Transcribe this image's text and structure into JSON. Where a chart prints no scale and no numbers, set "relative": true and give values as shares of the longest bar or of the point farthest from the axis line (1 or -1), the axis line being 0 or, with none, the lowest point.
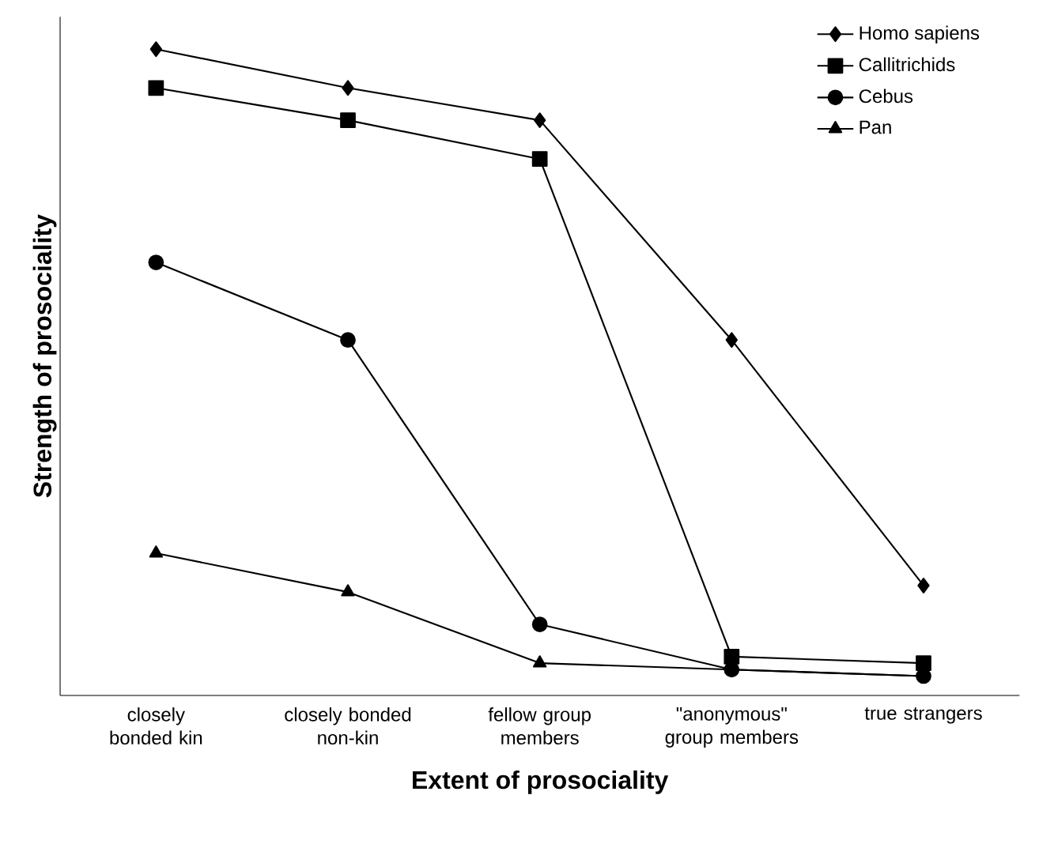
{
  "chart_data": {
    "type": "line",
    "relative": true,
    "xlabel": "Extent of prosociality",
    "ylabel": "Strength of prosociality",
    "categories": [
      "closely bonded kin",
      "closely bonded non-kin",
      "fellow group members",
      "\"anonymous\" group members",
      "true strangers"
    ],
    "series": [
      {
        "name": "Homo sapiens",
        "color": "#000000",
        "marker": "diamond",
        "values": [
          1.0,
          0.94,
          0.89,
          0.55,
          0.17
        ]
      },
      {
        "name": "Callitrichids",
        "color": "#000000",
        "marker": "square",
        "values": [
          0.94,
          0.89,
          0.83,
          0.06,
          0.05
        ]
      },
      {
        "name": "Cebus",
        "color": "#000000",
        "marker": "circle",
        "values": [
          0.67,
          0.55,
          0.11,
          0.04,
          0.03
        ]
      },
      {
        "name": "Pan",
        "color": "#000000",
        "marker": "triangle",
        "values": [
          0.22,
          0.16,
          0.05,
          0.04,
          0.03
        ]
      }
    ],
    "legend": "top right",
    "tick_labels": "x",
    "grid": false,
    "line_style": "solid"
  }
}
